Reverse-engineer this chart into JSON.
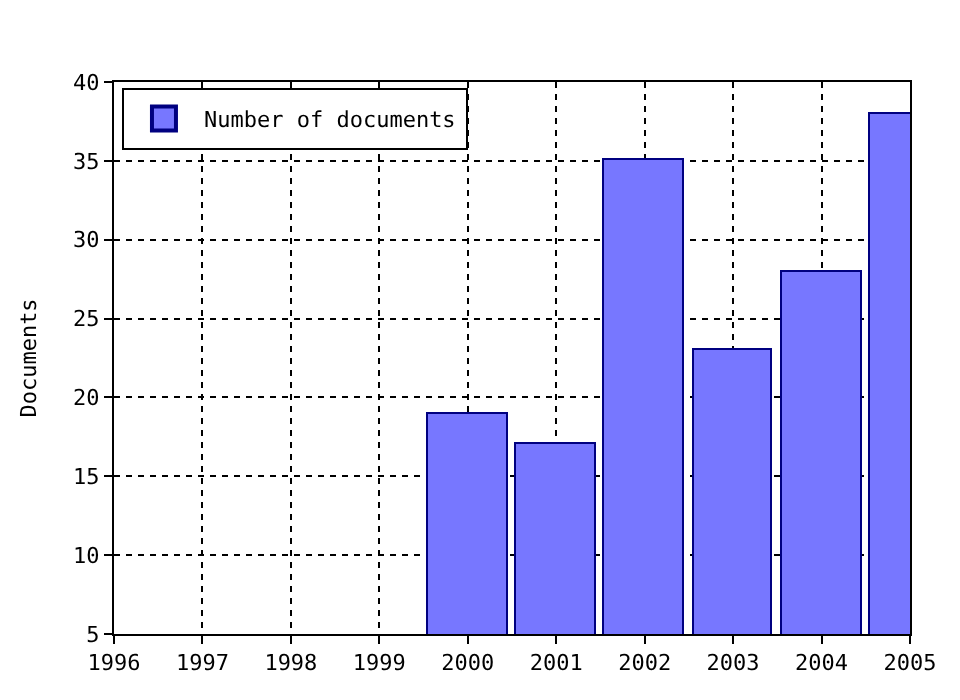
{
  "chart_data": {
    "type": "bar",
    "ylabel": "Documents",
    "x": [
      2000,
      2001,
      2002,
      2003,
      2004,
      2005
    ],
    "series": [
      {
        "name": "Number of documents",
        "color": "#7777ff",
        "values": [
          19,
          17,
          35,
          23,
          28,
          38
        ]
      }
    ],
    "xlim": [
      1996,
      2005
    ],
    "xticks": [
      1996,
      1997,
      1998,
      1999,
      2000,
      2001,
      2002,
      2003,
      2004,
      2005
    ],
    "ylim": [
      5,
      40
    ],
    "yticks": [
      5,
      10,
      15,
      20,
      25,
      30,
      35,
      40
    ],
    "grid": true,
    "legend": "top left"
  }
}
